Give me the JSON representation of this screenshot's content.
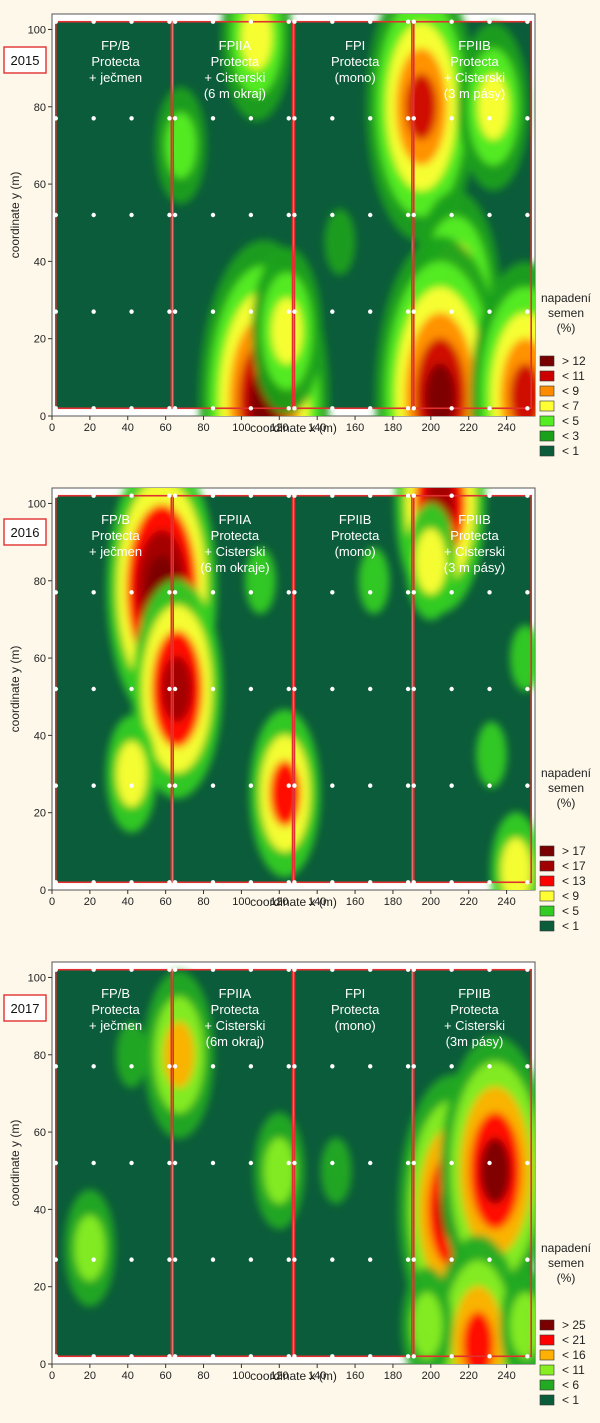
{
  "chart_data": [
    {
      "type": "heatmap",
      "year": "2015",
      "xlabel": "coordinate x (m)",
      "ylabel": "coordinate y (m)",
      "xlim": [
        0,
        255
      ],
      "ylim": [
        0,
        104
      ],
      "x_ticks": [
        0,
        20,
        40,
        60,
        80,
        100,
        120,
        140,
        160,
        180,
        200,
        220,
        240
      ],
      "y_ticks": [
        0,
        20,
        40,
        60,
        80,
        100
      ],
      "legend_title": [
        "napadení",
        "semen",
        "(%)"
      ],
      "legend": [
        {
          "label": "> 12",
          "color": "#7a0000"
        },
        {
          "label": "< 11",
          "color": "#cc0000"
        },
        {
          "label": "< 9",
          "color": "#ff8c00"
        },
        {
          "label": "< 7",
          "color": "#ffff33"
        },
        {
          "label": "< 5",
          "color": "#55ee22"
        },
        {
          "label": "< 3",
          "color": "#1aa01a"
        },
        {
          "label": "< 1",
          "color": "#0b5c3a"
        }
      ],
      "plots": [
        {
          "x_range": [
            2,
            63
          ],
          "y_range": [
            2,
            102
          ],
          "lines": [
            "FP/B",
            "Protecta",
            "+ ječmen"
          ]
        },
        {
          "x_range": [
            64,
            127
          ],
          "y_range": [
            2,
            102
          ],
          "lines": [
            "FPIIA",
            "Protecta",
            "+ Cisterski",
            "(6 m okraj)"
          ]
        },
        {
          "x_range": [
            128,
            190
          ],
          "y_range": [
            2,
            102
          ],
          "lines": [
            "FPI",
            "Protecta",
            "(mono)"
          ]
        },
        {
          "x_range": [
            191,
            253
          ],
          "y_range": [
            2,
            102
          ],
          "lines": [
            "FPIIB",
            "Protecta",
            "+ Cisterski",
            "(3 m pásy)"
          ]
        }
      ],
      "sample_x": [
        2,
        22,
        42,
        62,
        65,
        85,
        105,
        125,
        128,
        148,
        168,
        188,
        191,
        211,
        231,
        251
      ],
      "sample_y": [
        2,
        27,
        52,
        77,
        102
      ],
      "hotspots": [
        {
          "x": 112,
          "y": 4,
          "level": 12
        },
        {
          "x": 124,
          "y": 22,
          "level": 6
        },
        {
          "x": 68,
          "y": 70,
          "level": 4
        },
        {
          "x": 108,
          "y": 98,
          "level": 6
        },
        {
          "x": 195,
          "y": 80,
          "level": 10
        },
        {
          "x": 213,
          "y": 30,
          "level": 7
        },
        {
          "x": 205,
          "y": 5,
          "level": 11
        },
        {
          "x": 233,
          "y": 80,
          "level": 6
        },
        {
          "x": 250,
          "y": 5,
          "level": 9
        },
        {
          "x": 152,
          "y": 45,
          "level": 2
        }
      ]
    },
    {
      "type": "heatmap",
      "year": "2016",
      "xlabel": "coordinate x (m)",
      "ylabel": "coordinate y (m)",
      "xlim": [
        0,
        255
      ],
      "ylim": [
        0,
        104
      ],
      "x_ticks": [
        0,
        20,
        40,
        60,
        80,
        100,
        120,
        140,
        160,
        180,
        200,
        220,
        240
      ],
      "y_ticks": [
        0,
        20,
        40,
        60,
        80,
        100
      ],
      "legend_title": [
        "napadení",
        "semen",
        "(%)"
      ],
      "legend": [
        {
          "label": "> 17",
          "color": "#7a0000"
        },
        {
          "label": "< 17",
          "color": "#a00000"
        },
        {
          "label": "< 13",
          "color": "#ff0000"
        },
        {
          "label": "< 9",
          "color": "#ffff33"
        },
        {
          "label": "< 5",
          "color": "#33cc22"
        },
        {
          "label": "< 1",
          "color": "#0b5c3a"
        }
      ],
      "plots": [
        {
          "x_range": [
            2,
            63
          ],
          "y_range": [
            2,
            102
          ],
          "lines": [
            "FP/B",
            "Protecta",
            "+ ječmen"
          ]
        },
        {
          "x_range": [
            64,
            127
          ],
          "y_range": [
            2,
            102
          ],
          "lines": [
            "FPIIA",
            "Protecta",
            "+ Cisterski",
            "(6 m okraje)"
          ]
        },
        {
          "x_range": [
            128,
            190
          ],
          "y_range": [
            2,
            102
          ],
          "lines": [
            "FPIIB",
            "Protecta",
            "(mono)"
          ]
        },
        {
          "x_range": [
            191,
            253
          ],
          "y_range": [
            2,
            102
          ],
          "lines": [
            "FPIIB",
            "Protecta",
            "+ Cisterski",
            "(3 m pásy)"
          ]
        }
      ],
      "sample_x": [
        2,
        22,
        42,
        62,
        65,
        85,
        105,
        125,
        128,
        148,
        168,
        188,
        191,
        211,
        231,
        251
      ],
      "sample_y": [
        2,
        27,
        52,
        77,
        102
      ],
      "hotspots": [
        {
          "x": 58,
          "y": 78,
          "level": 18
        },
        {
          "x": 66,
          "y": 52,
          "level": 14
        },
        {
          "x": 42,
          "y": 30,
          "level": 6
        },
        {
          "x": 123,
          "y": 25,
          "level": 10
        },
        {
          "x": 110,
          "y": 80,
          "level": 4
        },
        {
          "x": 170,
          "y": 80,
          "level": 5
        },
        {
          "x": 205,
          "y": 100,
          "level": 16
        },
        {
          "x": 200,
          "y": 85,
          "level": 8
        },
        {
          "x": 232,
          "y": 35,
          "level": 5
        },
        {
          "x": 250,
          "y": 60,
          "level": 4
        },
        {
          "x": 245,
          "y": 5,
          "level": 6
        }
      ]
    },
    {
      "type": "heatmap",
      "year": "2017",
      "xlabel": "coordinate x (m)",
      "ylabel": "coordinate y (m)",
      "xlim": [
        0,
        255
      ],
      "ylim": [
        0,
        104
      ],
      "x_ticks": [
        0,
        20,
        40,
        60,
        80,
        100,
        120,
        140,
        160,
        180,
        200,
        220,
        240
      ],
      "y_ticks": [
        0,
        20,
        40,
        60,
        80,
        100
      ],
      "legend_title": [
        "napadení",
        "semen",
        "(%)"
      ],
      "legend": [
        {
          "label": "> 25",
          "color": "#7a0000"
        },
        {
          "label": "< 21",
          "color": "#ff0000"
        },
        {
          "label": "< 16",
          "color": "#ffb000"
        },
        {
          "label": "< 11",
          "color": "#88ee22"
        },
        {
          "label": "< 6",
          "color": "#22aa22"
        },
        {
          "label": "< 1",
          "color": "#0b5c3a"
        }
      ],
      "plots": [
        {
          "x_range": [
            2,
            63
          ],
          "y_range": [
            2,
            102
          ],
          "lines": [
            "FP/B",
            "Protecta",
            "+ ječmen"
          ]
        },
        {
          "x_range": [
            64,
            127
          ],
          "y_range": [
            2,
            102
          ],
          "lines": [
            "FPIIA",
            "Protecta",
            "+ Cisterski",
            "(6m okraj)"
          ]
        },
        {
          "x_range": [
            128,
            190
          ],
          "y_range": [
            2,
            102
          ],
          "lines": [
            "FPI",
            "Protecta",
            "(mono)"
          ]
        },
        {
          "x_range": [
            191,
            253
          ],
          "y_range": [
            2,
            102
          ],
          "lines": [
            "FPIIB",
            "Protecta",
            "+ Cisterski",
            "(3m pásy)"
          ]
        }
      ],
      "sample_x": [
        2,
        22,
        42,
        62,
        65,
        85,
        105,
        125,
        128,
        148,
        168,
        188,
        191,
        211,
        231,
        251
      ],
      "sample_y": [
        2,
        27,
        52,
        77,
        102
      ],
      "hotspots": [
        {
          "x": 20,
          "y": 30,
          "level": 9
        },
        {
          "x": 42,
          "y": 80,
          "level": 8
        },
        {
          "x": 67,
          "y": 80,
          "level": 16
        },
        {
          "x": 120,
          "y": 50,
          "level": 12
        },
        {
          "x": 150,
          "y": 50,
          "level": 3
        },
        {
          "x": 212,
          "y": 40,
          "level": 26
        },
        {
          "x": 234,
          "y": 50,
          "level": 27
        },
        {
          "x": 225,
          "y": 5,
          "level": 24
        },
        {
          "x": 198,
          "y": 10,
          "level": 12
        },
        {
          "x": 250,
          "y": 10,
          "level": 10
        }
      ]
    }
  ]
}
